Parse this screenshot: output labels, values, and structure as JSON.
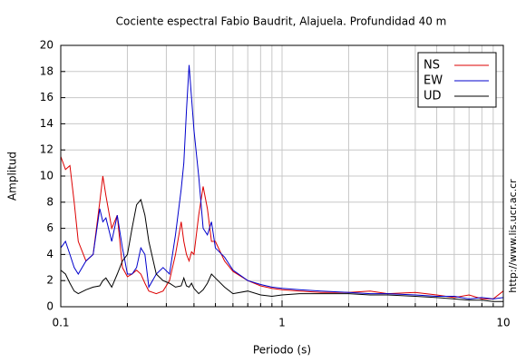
{
  "chart_data": {
    "type": "line",
    "title": "Cociente espectral Fabio Baudrit, Alajuela. Profundidad 40 m",
    "x_label": "Periodo (s)",
    "y_label": "Amplitud",
    "side_note": "http://www.lis.ucr.ac.cr",
    "x_scale": "log",
    "grid": true,
    "legend": "upper right",
    "xlim": [
      0.1,
      10
    ],
    "xticks": [
      0.1,
      1,
      10
    ],
    "x_minor_ticks": [
      0.2,
      0.3,
      0.4,
      0.5,
      0.6,
      0.7,
      0.8,
      0.9,
      2,
      3,
      4,
      5,
      6,
      7,
      8,
      9
    ],
    "ylim": [
      0,
      20
    ],
    "yticks": [
      0,
      2,
      4,
      6,
      8,
      10,
      12,
      14,
      16,
      18,
      20
    ],
    "x": [
      0.1,
      0.105,
      0.11,
      0.115,
      0.12,
      0.13,
      0.14,
      0.15,
      0.155,
      0.16,
      0.17,
      0.18,
      0.19,
      0.2,
      0.21,
      0.22,
      0.23,
      0.24,
      0.25,
      0.27,
      0.29,
      0.31,
      0.33,
      0.35,
      0.36,
      0.37,
      0.38,
      0.39,
      0.4,
      0.42,
      0.44,
      0.46,
      0.48,
      0.5,
      0.55,
      0.6,
      0.7,
      0.8,
      0.9,
      1,
      1.2,
      1.5,
      2,
      2.5,
      3,
      4,
      5,
      6,
      7,
      8,
      9,
      10
    ],
    "series": [
      {
        "name": "NS",
        "color": "#dd0000",
        "values": [
          11.5,
          10.5,
          10.8,
          8,
          5,
          3.5,
          4,
          8,
          10,
          8.5,
          6,
          7,
          3,
          2.3,
          2.5,
          2.8,
          2.5,
          1.8,
          1.2,
          1.0,
          1.2,
          2,
          4,
          6.5,
          5,
          4,
          3.5,
          4.2,
          4,
          7,
          9.2,
          7.5,
          5,
          5,
          3.5,
          2.7,
          2,
          1.6,
          1.4,
          1.3,
          1.2,
          1.1,
          1.1,
          1.2,
          1.0,
          1.1,
          0.9,
          0.7,
          0.9,
          0.6,
          0.6,
          1.2
        ]
      },
      {
        "name": "EW",
        "color": "#0000cc",
        "values": [
          4.5,
          5,
          4,
          3,
          2.5,
          3.5,
          4,
          7.5,
          6.5,
          6.8,
          5,
          7,
          4.5,
          2.5,
          2.5,
          3,
          4.5,
          4,
          1.5,
          2.5,
          3,
          2.5,
          5.5,
          9,
          11,
          15,
          18.5,
          16,
          13.5,
          10,
          6,
          5.5,
          6.5,
          4.5,
          3.8,
          2.8,
          2,
          1.7,
          1.5,
          1.4,
          1.3,
          1.2,
          1.1,
          1.0,
          1.0,
          0.9,
          0.8,
          0.8,
          0.6,
          0.7,
          0.6,
          0.7
        ]
      },
      {
        "name": "UD",
        "color": "#000000",
        "values": [
          2.8,
          2.5,
          1.8,
          1.2,
          1.0,
          1.3,
          1.5,
          1.6,
          2.0,
          2.2,
          1.5,
          2.5,
          3.5,
          4,
          6,
          7.8,
          8.2,
          7,
          5,
          2.5,
          2,
          1.8,
          1.5,
          1.6,
          2.2,
          1.6,
          1.5,
          1.8,
          1.4,
          1.0,
          1.3,
          1.8,
          2.5,
          2.2,
          1.5,
          1.0,
          1.2,
          0.9,
          0.8,
          0.9,
          1.0,
          1.0,
          1.0,
          0.9,
          0.9,
          0.8,
          0.7,
          0.6,
          0.5,
          0.5,
          0.4,
          0.4
        ]
      }
    ]
  }
}
